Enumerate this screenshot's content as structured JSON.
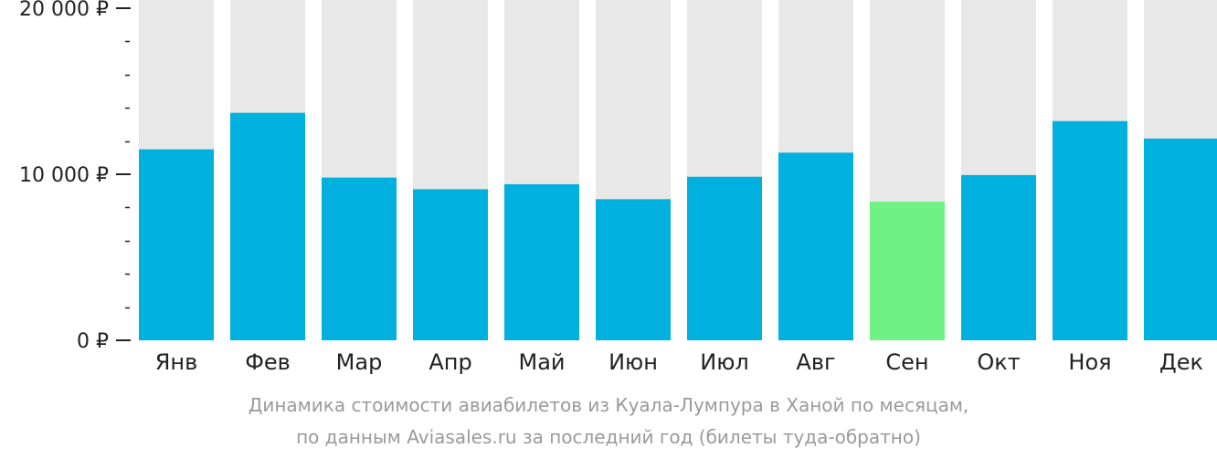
{
  "chart_data": {
    "type": "bar",
    "categories": [
      "Янв",
      "Фев",
      "Мар",
      "Апр",
      "Май",
      "Июн",
      "Июл",
      "Авг",
      "Сен",
      "Окт",
      "Ноя",
      "Дек"
    ],
    "values": [
      11500,
      13700,
      9800,
      9100,
      9400,
      8500,
      9850,
      11300,
      8350,
      9950,
      13200,
      12150
    ],
    "ylim": [
      0,
      20000
    ],
    "y_ticks": [
      {
        "value": 0,
        "label": "0 ₽"
      },
      {
        "value": 10000,
        "label": "10 000 ₽"
      },
      {
        "value": 20000,
        "label": "20 000 ₽"
      }
    ],
    "minor_tick_step": 2000,
    "highlight_index": 8,
    "colors": {
      "bar": "#00b0de",
      "bar_highlight": "#6ef286",
      "track": "#e8e8e8",
      "axis": "#222222",
      "tick_label": "#222222",
      "caption": "#9a9a9a"
    }
  },
  "caption": {
    "line1": "Динамика стоимости авиабилетов из Куала-Лумпура в Ханой по месяцам,",
    "line2": "по данным Aviasales.ru за последний год (билеты туда-обратно)"
  }
}
